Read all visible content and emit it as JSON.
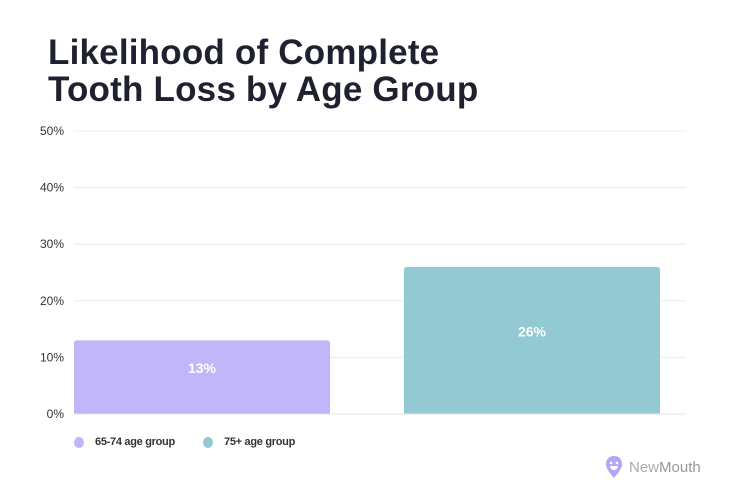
{
  "chart_data": {
    "type": "bar",
    "title": "Likelihood of Complete Tooth Loss by Age Group",
    "categories": [
      "65-74 age group",
      "75+ age group"
    ],
    "values": [
      13,
      26
    ],
    "data_labels": [
      "13%",
      "26%"
    ],
    "ylim": [
      0,
      50
    ],
    "yticks": [
      "0%",
      "10%",
      "20%",
      "30%",
      "40%",
      "50%"
    ],
    "grid": true,
    "legend": "bottom-left",
    "colors": [
      "#c2b6fb",
      "#93c9d2"
    ]
  },
  "title_lines": [
    "Likelihood of Complete",
    "Tooth Loss by Age Group"
  ],
  "legend": [
    {
      "label": "65-74 age group",
      "color": "#c2b6fb"
    },
    {
      "label": "75+ age group",
      "color": "#93c9d2"
    }
  ],
  "brand": {
    "name_a": "New",
    "name_b": "Mouth",
    "color": "#b3a6f7"
  }
}
